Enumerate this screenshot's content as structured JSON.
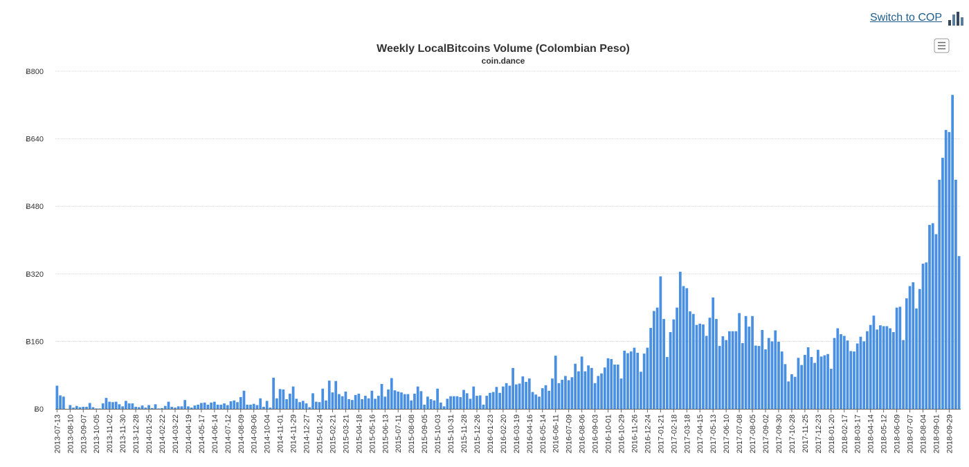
{
  "header": {
    "switch_link": "Switch to COP",
    "switch_icon": "bar-chart-icon"
  },
  "menu_icon": "hamburger-menu-icon",
  "colors": {
    "bar": "#4a90e2",
    "grid": "#d8d8d8",
    "axis": "#666666",
    "link": "#1f5d8c"
  },
  "chart_data": {
    "type": "bar",
    "title": "Weekly LocalBitcoins Volume (Colombian Peso)",
    "subtitle": "coin.dance",
    "xlabel": "",
    "ylabel": "",
    "currency_symbol": "Ƀ",
    "ylim": [
      0,
      800
    ],
    "yticks": [
      0,
      160,
      320,
      480,
      640,
      800
    ],
    "ytick_labels": [
      "Ƀ0",
      "Ƀ160",
      "Ƀ320",
      "Ƀ480",
      "Ƀ640",
      "Ƀ800"
    ],
    "start_date": "2013-07-13",
    "week_step_days": 7,
    "label_every_weeks": 4,
    "values": [
      55,
      32,
      29,
      0,
      9,
      3,
      7,
      4,
      5,
      5,
      14,
      4,
      1,
      1,
      13,
      26,
      17,
      16,
      17,
      11,
      6,
      19,
      13,
      13,
      5,
      4,
      8,
      3,
      9,
      2,
      11,
      1,
      2,
      7,
      17,
      5,
      3,
      6,
      6,
      21,
      6,
      3,
      8,
      10,
      14,
      15,
      10,
      15,
      17,
      10,
      10,
      13,
      9,
      18,
      20,
      16,
      28,
      43,
      10,
      10,
      12,
      9,
      25,
      5,
      19,
      3,
      74,
      25,
      47,
      46,
      23,
      36,
      53,
      24,
      16,
      19,
      13,
      4,
      37,
      17,
      16,
      48,
      20,
      67,
      39,
      66,
      35,
      30,
      41,
      23,
      21,
      33,
      36,
      23,
      31,
      25,
      43,
      24,
      31,
      59,
      29,
      46,
      73,
      44,
      41,
      39,
      35,
      35,
      20,
      36,
      53,
      42,
      10,
      29,
      23,
      20,
      48,
      15,
      6,
      24,
      30,
      30,
      30,
      28,
      45,
      37,
      24,
      53,
      31,
      32,
      10,
      31,
      38,
      40,
      52,
      38,
      53,
      61,
      55,
      97,
      58,
      60,
      77,
      64,
      72,
      40,
      34,
      29,
      49,
      56,
      43,
      72,
      126,
      61,
      69,
      78,
      68,
      75,
      107,
      89,
      124,
      89,
      103,
      97,
      61,
      78,
      84,
      98,
      120,
      118,
      105,
      105,
      72,
      138,
      132,
      136,
      145,
      133,
      88,
      131,
      145,
      192,
      232,
      240,
      314,
      213,
      123,
      182,
      212,
      240,
      325,
      291,
      286,
      231,
      225,
      199,
      202,
      200,
      173,
      216,
      264,
      213,
      149,
      172,
      163,
      184,
      184,
      184,
      227,
      156,
      220,
      195,
      220,
      150,
      149,
      187,
      141,
      168,
      160,
      186,
      159,
      136,
      106,
      65,
      82,
      76,
      121,
      104,
      128,
      146,
      123,
      109,
      140,
      124,
      127,
      130,
      95,
      168,
      191,
      177,
      173,
      162,
      137,
      136,
      155,
      171,
      160,
      184,
      199,
      221,
      188,
      198,
      196,
      196,
      191,
      182,
      240,
      242,
      163,
      262,
      291,
      300,
      238,
      284,
      344,
      347,
      436,
      440,
      414,
      543,
      595,
      661,
      656,
      744,
      543,
      362
    ]
  }
}
